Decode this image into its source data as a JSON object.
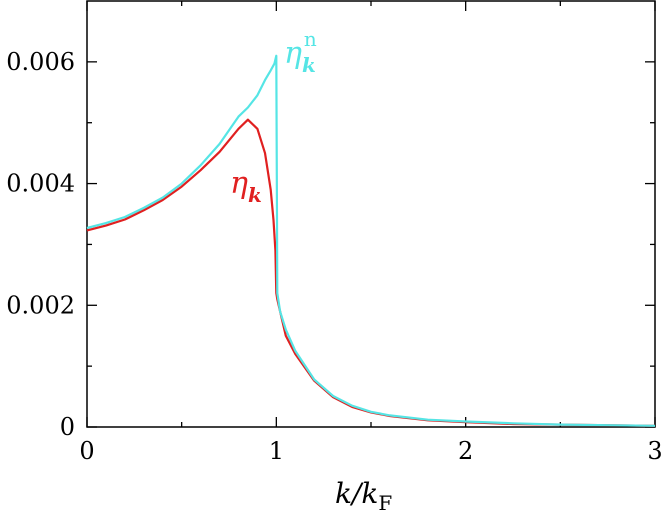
{
  "chart_data": {
    "type": "line",
    "title": "",
    "xlabel": "k/kF",
    "ylabel": "",
    "xlim": [
      0,
      3
    ],
    "ylim": [
      0,
      0.007
    ],
    "xticks": [
      {
        "value": 0,
        "label": "0"
      },
      {
        "value": 1,
        "label": "1"
      },
      {
        "value": 2,
        "label": "2"
      },
      {
        "value": 3,
        "label": "3"
      }
    ],
    "yticks": [
      {
        "value": 0,
        "label": "0"
      },
      {
        "value": 0.002,
        "label": "0.002"
      },
      {
        "value": 0.004,
        "label": "0.004"
      },
      {
        "value": 0.006,
        "label": "0.006"
      }
    ],
    "minor_x": [
      0.5,
      1.5,
      2.5
    ],
    "minor_y": [
      0.001,
      0.003,
      0.005
    ],
    "grid": false,
    "legend": "inline labels near curves",
    "series": [
      {
        "name": "ηkn",
        "color": "#55e5e5",
        "x": [
          0,
          0.1,
          0.2,
          0.3,
          0.4,
          0.5,
          0.6,
          0.7,
          0.8,
          0.85,
          0.9,
          0.94,
          0.97,
          0.99,
          1.0,
          1.005,
          1.02,
          1.05,
          1.1,
          1.2,
          1.3,
          1.4,
          1.5,
          1.6,
          1.8,
          2.0,
          2.25,
          2.5,
          2.75,
          3.0
        ],
        "y": [
          0.00327,
          0.00335,
          0.00345,
          0.0036,
          0.00377,
          0.004,
          0.0043,
          0.00465,
          0.0051,
          0.00525,
          0.00545,
          0.0057,
          0.00586,
          0.00597,
          0.0061,
          0.0022,
          0.0019,
          0.0016,
          0.00125,
          0.00078,
          0.00051,
          0.00035,
          0.00025,
          0.00019,
          0.00012,
          9e-05,
          6e-05,
          4e-05,
          3e-05,
          2e-05
        ]
      },
      {
        "name": "ηk",
        "color": "#e02020",
        "x": [
          0,
          0.1,
          0.2,
          0.3,
          0.4,
          0.5,
          0.6,
          0.7,
          0.8,
          0.85,
          0.9,
          0.94,
          0.97,
          0.985,
          0.995,
          1.0,
          1.005,
          1.02,
          1.05,
          1.1,
          1.2,
          1.3,
          1.4,
          1.5,
          1.6,
          1.8,
          2.0,
          2.25,
          2.5,
          2.75,
          3.0
        ],
        "y": [
          0.00323,
          0.00331,
          0.00341,
          0.00356,
          0.00373,
          0.00395,
          0.00422,
          0.00452,
          0.0049,
          0.00505,
          0.0049,
          0.0045,
          0.0039,
          0.0034,
          0.0029,
          0.0022,
          0.0021,
          0.0019,
          0.0015,
          0.0012,
          0.00076,
          0.00049,
          0.00033,
          0.00024,
          0.00018,
          0.00011,
          8e-05,
          5e-05,
          4e-05,
          3e-05,
          2e-05
        ]
      }
    ]
  },
  "labels": {
    "eta_n_base": "η",
    "eta_n_sub": "k",
    "eta_n_sup": "n",
    "eta_base": "η",
    "eta_sub": "k",
    "x_axis_k": "k/k",
    "x_axis_sub": "F"
  }
}
